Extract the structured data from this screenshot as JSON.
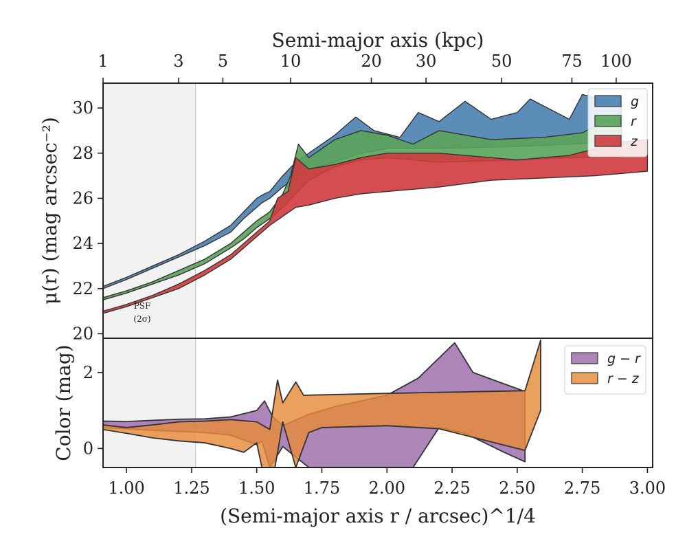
{
  "chart_data": [
    {
      "type": "area",
      "ylabel": "μ(r) (mag arcsec⁻²)",
      "top_xlabel": "Semi-major axis (kpc)",
      "top_ticks": [
        {
          "label": "1",
          "x": 0.91
        },
        {
          "label": "3",
          "x": 1.2
        },
        {
          "label": "5",
          "x": 1.37
        },
        {
          "label": "10",
          "x": 1.63
        },
        {
          "label": "20",
          "x": 1.94
        },
        {
          "label": "30",
          "x": 2.15
        },
        {
          "label": "50",
          "x": 2.44
        },
        {
          "label": "75",
          "x": 2.71
        },
        {
          "label": "100",
          "x": 2.88
        }
      ],
      "xlim": [
        0.91,
        3.02
      ],
      "ylim": [
        31.1,
        19.8
      ],
      "yticks": [
        "20",
        "22",
        "24",
        "26",
        "28",
        "30"
      ],
      "ytick_values": [
        20,
        22,
        24,
        26,
        28,
        30
      ],
      "psf_region": {
        "x_end": 1.265,
        "label_line1": "PSF",
        "label_line2": "(2σ)"
      },
      "legend_position": "top-right",
      "series": [
        {
          "name": "g",
          "color": "#4a7fb0",
          "upper": [
            [
              0.91,
              22.0
            ],
            [
              1.0,
              22.4
            ],
            [
              1.1,
              22.9
            ],
            [
              1.2,
              23.4
            ],
            [
              1.3,
              23.9
            ],
            [
              1.4,
              24.5
            ],
            [
              1.45,
              25.1
            ],
            [
              1.5,
              25.6
            ],
            [
              1.52,
              25.8
            ],
            [
              1.55,
              26.0
            ],
            [
              1.6,
              26.5
            ],
            [
              1.65,
              26.9
            ],
            [
              1.7,
              27.3
            ],
            [
              1.8,
              27.6
            ],
            [
              1.9,
              28.0
            ],
            [
              2.0,
              28.2
            ],
            [
              2.2,
              28.2
            ],
            [
              2.5,
              28.3
            ],
            [
              2.7,
              28.4
            ],
            [
              2.9,
              28.5
            ]
          ],
          "lower": [
            [
              0.91,
              22.1
            ],
            [
              1.0,
              22.5
            ],
            [
              1.1,
              23.0
            ],
            [
              1.2,
              23.5
            ],
            [
              1.3,
              24.1
            ],
            [
              1.4,
              24.8
            ],
            [
              1.45,
              25.4
            ],
            [
              1.5,
              26.0
            ],
            [
              1.53,
              26.2
            ],
            [
              1.55,
              26.3
            ],
            [
              1.6,
              27.0
            ],
            [
              1.65,
              27.6
            ],
            [
              1.7,
              28.0
            ],
            [
              1.8,
              28.8
            ],
            [
              1.88,
              29.6
            ],
            [
              1.95,
              29.0
            ],
            [
              2.05,
              28.7
            ],
            [
              2.12,
              29.8
            ],
            [
              2.2,
              29.4
            ],
            [
              2.3,
              30.3
            ],
            [
              2.4,
              29.5
            ],
            [
              2.5,
              29.8
            ],
            [
              2.55,
              30.4
            ],
            [
              2.7,
              29.5
            ],
            [
              2.75,
              30.6
            ],
            [
              2.82,
              30.4
            ],
            [
              2.9,
              30.2
            ]
          ]
        },
        {
          "name": "r",
          "color": "#5aa35a",
          "upper": [
            [
              0.91,
              21.5
            ],
            [
              1.0,
              21.8
            ],
            [
              1.1,
              22.2
            ],
            [
              1.2,
              22.6
            ],
            [
              1.3,
              23.1
            ],
            [
              1.4,
              23.8
            ],
            [
              1.45,
              24.2
            ],
            [
              1.5,
              24.7
            ],
            [
              1.55,
              25.1
            ],
            [
              1.6,
              25.6
            ],
            [
              1.65,
              26.2
            ],
            [
              1.7,
              26.8
            ],
            [
              1.8,
              27.4
            ],
            [
              1.9,
              27.7
            ],
            [
              2.0,
              27.8
            ],
            [
              2.2,
              27.6
            ],
            [
              2.5,
              27.7
            ],
            [
              2.7,
              27.8
            ],
            [
              2.9,
              27.8
            ]
          ],
          "lower": [
            [
              0.91,
              21.6
            ],
            [
              1.0,
              21.9
            ],
            [
              1.1,
              22.3
            ],
            [
              1.2,
              22.8
            ],
            [
              1.3,
              23.3
            ],
            [
              1.4,
              24.0
            ],
            [
              1.45,
              24.5
            ],
            [
              1.5,
              25.0
            ],
            [
              1.55,
              25.4
            ],
            [
              1.6,
              26.2
            ],
            [
              1.63,
              27.0
            ],
            [
              1.66,
              28.4
            ],
            [
              1.7,
              27.8
            ],
            [
              1.8,
              28.6
            ],
            [
              1.9,
              29.0
            ],
            [
              2.0,
              28.8
            ],
            [
              2.1,
              28.4
            ],
            [
              2.2,
              29.0
            ],
            [
              2.4,
              28.6
            ],
            [
              2.6,
              28.7
            ],
            [
              2.75,
              28.9
            ],
            [
              2.9,
              29.8
            ]
          ]
        },
        {
          "name": "z",
          "color": "#cf3b3e",
          "upper": [
            [
              0.91,
              20.9
            ],
            [
              1.0,
              21.2
            ],
            [
              1.1,
              21.6
            ],
            [
              1.2,
              22.0
            ],
            [
              1.3,
              22.6
            ],
            [
              1.4,
              23.3
            ],
            [
              1.45,
              23.8
            ],
            [
              1.5,
              24.3
            ],
            [
              1.55,
              24.8
            ],
            [
              1.6,
              25.2
            ],
            [
              1.65,
              25.6
            ],
            [
              1.7,
              25.7
            ],
            [
              1.8,
              26.0
            ],
            [
              1.9,
              26.2
            ],
            [
              2.0,
              26.3
            ],
            [
              2.2,
              26.5
            ],
            [
              2.4,
              26.8
            ],
            [
              2.6,
              26.9
            ],
            [
              2.8,
              27.0
            ],
            [
              3.0,
              27.2
            ]
          ],
          "lower": [
            [
              0.91,
              21.0
            ],
            [
              1.0,
              21.3
            ],
            [
              1.1,
              21.7
            ],
            [
              1.2,
              22.2
            ],
            [
              1.3,
              22.8
            ],
            [
              1.4,
              23.5
            ],
            [
              1.45,
              24.0
            ],
            [
              1.5,
              24.5
            ],
            [
              1.55,
              25.0
            ],
            [
              1.58,
              26.0
            ],
            [
              1.62,
              26.3
            ],
            [
              1.65,
              27.8
            ],
            [
              1.7,
              27.3
            ],
            [
              1.8,
              27.5
            ],
            [
              1.9,
              27.8
            ],
            [
              2.0,
              28.0
            ],
            [
              2.2,
              28.0
            ],
            [
              2.4,
              27.8
            ],
            [
              2.5,
              27.7
            ],
            [
              2.7,
              27.9
            ],
            [
              2.9,
              28.5
            ],
            [
              3.0,
              28.6
            ]
          ]
        }
      ]
    },
    {
      "type": "area",
      "ylabel": "Color (mag)",
      "xlabel": "(Semi-major axis r / arcsec)^1/4",
      "xlim": [
        0.91,
        3.02
      ],
      "ylim": [
        -0.5,
        2.9
      ],
      "yticks": [
        "0",
        "2"
      ],
      "ytick_values": [
        0,
        2
      ],
      "xticks": [
        "1.00",
        "1.25",
        "1.50",
        "1.75",
        "2.00",
        "2.25",
        "2.50",
        "2.75",
        "3.00"
      ],
      "xtick_values": [
        1.0,
        1.25,
        1.5,
        1.75,
        2.0,
        2.25,
        2.5,
        2.75,
        3.0
      ],
      "legend_position": "top-right",
      "series": [
        {
          "name": "g − r",
          "color": "#9b6aa8",
          "upper": [
            [
              0.91,
              0.72
            ],
            [
              1.0,
              0.71
            ],
            [
              1.1,
              0.74
            ],
            [
              1.2,
              0.77
            ],
            [
              1.3,
              0.78
            ],
            [
              1.4,
              0.83
            ],
            [
              1.5,
              1.0
            ],
            [
              1.53,
              1.25
            ],
            [
              1.56,
              0.85
            ],
            [
              1.6,
              0.6
            ],
            [
              1.7,
              0.9
            ],
            [
              1.8,
              1.1
            ],
            [
              2.0,
              1.4
            ],
            [
              2.12,
              1.85
            ],
            [
              2.26,
              2.78
            ],
            [
              2.33,
              2.0
            ],
            [
              2.45,
              1.7
            ],
            [
              2.53,
              1.5
            ]
          ],
          "lower": [
            [
              0.91,
              0.55
            ],
            [
              1.0,
              0.52
            ],
            [
              1.1,
              0.48
            ],
            [
              1.2,
              0.45
            ],
            [
              1.3,
              0.42
            ],
            [
              1.4,
              0.35
            ],
            [
              1.5,
              0.1
            ],
            [
              1.52,
              0.2
            ],
            [
              1.55,
              -0.5
            ],
            [
              1.6,
              0.05
            ],
            [
              1.7,
              -0.5
            ],
            [
              2.1,
              -0.5
            ],
            [
              2.2,
              0.55
            ],
            [
              2.3,
              0.4
            ],
            [
              2.45,
              -0.1
            ],
            [
              2.53,
              -0.35
            ]
          ]
        },
        {
          "name": "r − z",
          "color": "#e68b3a",
          "upper": [
            [
              0.91,
              0.62
            ],
            [
              1.0,
              0.55
            ],
            [
              1.1,
              0.62
            ],
            [
              1.2,
              0.7
            ],
            [
              1.3,
              0.72
            ],
            [
              1.4,
              0.76
            ],
            [
              1.5,
              0.7
            ],
            [
              1.55,
              0.5
            ],
            [
              1.58,
              1.8
            ],
            [
              1.6,
              1.2
            ],
            [
              1.65,
              1.75
            ],
            [
              1.68,
              1.4
            ],
            [
              2.0,
              1.45
            ],
            [
              2.53,
              1.52
            ],
            [
              2.59,
              2.85
            ]
          ],
          "lower": [
            [
              0.91,
              0.5
            ],
            [
              1.0,
              0.4
            ],
            [
              1.1,
              0.28
            ],
            [
              1.2,
              0.2
            ],
            [
              1.3,
              0.15
            ],
            [
              1.4,
              0.0
            ],
            [
              1.45,
              -0.1
            ],
            [
              1.5,
              0.15
            ],
            [
              1.52,
              -0.5
            ],
            [
              1.57,
              -0.5
            ],
            [
              1.6,
              0.7
            ],
            [
              1.65,
              -0.5
            ],
            [
              1.7,
              0.42
            ],
            [
              1.75,
              0.55
            ],
            [
              2.0,
              0.6
            ],
            [
              2.2,
              0.52
            ],
            [
              2.53,
              -0.05
            ],
            [
              2.59,
              1.0
            ]
          ]
        }
      ]
    }
  ]
}
